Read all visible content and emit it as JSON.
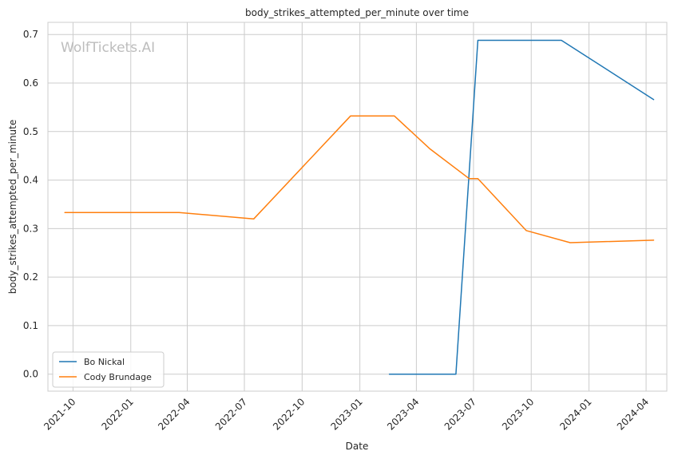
{
  "chart_data": {
    "type": "line",
    "title": "body_strikes_attempted_per_minute over time",
    "xlabel": "Date",
    "ylabel": "body_strikes_attempted_per_minute",
    "watermark": "WolfTickets.AI",
    "x_ticks": [
      "2021-10",
      "2022-01",
      "2022-04",
      "2022-07",
      "2022-10",
      "2023-01",
      "2023-04",
      "2023-07",
      "2023-10",
      "2024-01",
      "2024-04"
    ],
    "y_ticks": [
      "0.0",
      "0.1",
      "0.2",
      "0.3",
      "0.4",
      "0.5",
      "0.6",
      "0.7"
    ],
    "xlim": [
      "2021-08-22",
      "2024-05-04"
    ],
    "ylim": [
      -0.035,
      0.725
    ],
    "grid": true,
    "legend_position": "lower-left",
    "series": [
      {
        "name": "Bo Nickal",
        "color": "#1f77b4",
        "points": [
          {
            "x": "2023-02-17",
            "y": 0.0
          },
          {
            "x": "2023-06-03",
            "y": 0.0
          },
          {
            "x": "2023-07-08",
            "y": 0.688
          },
          {
            "x": "2023-11-18",
            "y": 0.688
          },
          {
            "x": "2024-04-13",
            "y": 0.566
          }
        ]
      },
      {
        "name": "Cody Brundage",
        "color": "#ff7f0e",
        "points": [
          {
            "x": "2021-09-18",
            "y": 0.333
          },
          {
            "x": "2022-03-19",
            "y": 0.333
          },
          {
            "x": "2022-07-16",
            "y": 0.32
          },
          {
            "x": "2022-12-17",
            "y": 0.532
          },
          {
            "x": "2023-02-25",
            "y": 0.532
          },
          {
            "x": "2023-04-22",
            "y": 0.465
          },
          {
            "x": "2023-06-24",
            "y": 0.403
          },
          {
            "x": "2023-07-08",
            "y": 0.403
          },
          {
            "x": "2023-09-23",
            "y": 0.296
          },
          {
            "x": "2023-12-02",
            "y": 0.271
          },
          {
            "x": "2024-04-13",
            "y": 0.276
          }
        ]
      }
    ]
  }
}
